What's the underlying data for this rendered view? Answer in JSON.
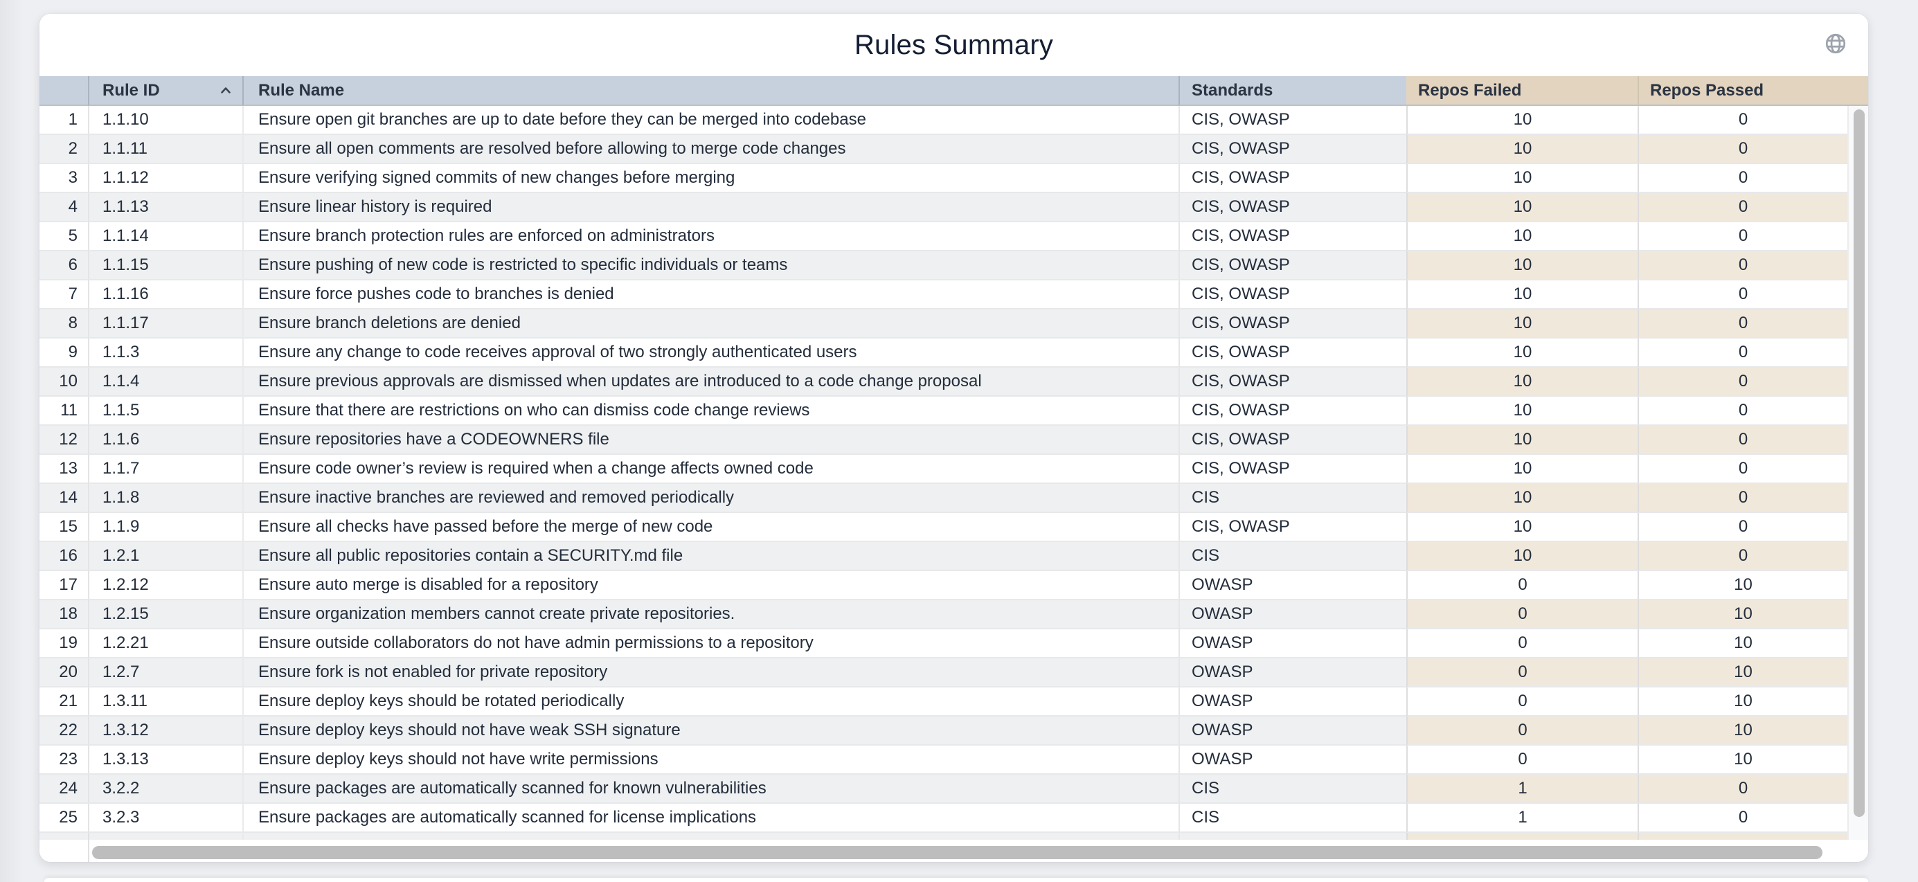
{
  "app": {
    "title": "Rules Summary"
  },
  "icons": {
    "globe": "globe-icon",
    "rule_id_sort": "chevron-up-icon"
  },
  "colors": {
    "header_blue": "#c7d1dd",
    "header_tan": "#e3d4bf",
    "stripe_gray": "#eef0f1",
    "stripe_tan": "#f0e8db",
    "title_text": "#141e33",
    "body_text": "#242d3b",
    "scrollbar_thumb": "#bdbdbd"
  },
  "table": {
    "sorted_by": "Rule ID",
    "sort_direction": "ascending",
    "columns": [
      "Rule ID",
      "Rule Name",
      "Standards",
      "Repos Failed",
      "Repos Passed"
    ],
    "rows": [
      {
        "n": 1,
        "id": "1.1.10",
        "name": "Ensure open git branches are up to date before they can be merged into codebase",
        "standards": "CIS, OWASP",
        "failed": 10,
        "passed": 0
      },
      {
        "n": 2,
        "id": "1.1.11",
        "name": "Ensure all open comments are resolved before allowing to merge code changes",
        "standards": "CIS, OWASP",
        "failed": 10,
        "passed": 0
      },
      {
        "n": 3,
        "id": "1.1.12",
        "name": "Ensure verifying signed commits of new changes before merging",
        "standards": "CIS, OWASP",
        "failed": 10,
        "passed": 0
      },
      {
        "n": 4,
        "id": "1.1.13",
        "name": "Ensure linear history is required",
        "standards": "CIS, OWASP",
        "failed": 10,
        "passed": 0
      },
      {
        "n": 5,
        "id": "1.1.14",
        "name": "Ensure branch protection rules are enforced on administrators",
        "standards": "CIS, OWASP",
        "failed": 10,
        "passed": 0
      },
      {
        "n": 6,
        "id": "1.1.15",
        "name": "Ensure pushing of new code is restricted to specific individuals or teams",
        "standards": "CIS, OWASP",
        "failed": 10,
        "passed": 0
      },
      {
        "n": 7,
        "id": "1.1.16",
        "name": "Ensure force pushes code to branches is denied",
        "standards": "CIS, OWASP",
        "failed": 10,
        "passed": 0
      },
      {
        "n": 8,
        "id": "1.1.17",
        "name": "Ensure branch deletions are denied",
        "standards": "CIS, OWASP",
        "failed": 10,
        "passed": 0
      },
      {
        "n": 9,
        "id": "1.1.3",
        "name": "Ensure any change to code receives approval of two strongly authenticated users",
        "standards": "CIS, OWASP",
        "failed": 10,
        "passed": 0
      },
      {
        "n": 10,
        "id": "1.1.4",
        "name": "Ensure previous approvals are dismissed when updates are introduced to a code change proposal",
        "standards": "CIS, OWASP",
        "failed": 10,
        "passed": 0
      },
      {
        "n": 11,
        "id": "1.1.5",
        "name": "Ensure that there are restrictions on who can dismiss code change reviews",
        "standards": "CIS, OWASP",
        "failed": 10,
        "passed": 0
      },
      {
        "n": 12,
        "id": "1.1.6",
        "name": "Ensure repositories have a CODEOWNERS file",
        "standards": "CIS, OWASP",
        "failed": 10,
        "passed": 0
      },
      {
        "n": 13,
        "id": "1.1.7",
        "name": "Ensure code owner’s review is required when a change affects owned code",
        "standards": "CIS, OWASP",
        "failed": 10,
        "passed": 0
      },
      {
        "n": 14,
        "id": "1.1.8",
        "name": "Ensure inactive branches are reviewed and removed periodically",
        "standards": "CIS",
        "failed": 10,
        "passed": 0
      },
      {
        "n": 15,
        "id": "1.1.9",
        "name": "Ensure all checks have passed before the merge of new code",
        "standards": "CIS, OWASP",
        "failed": 10,
        "passed": 0
      },
      {
        "n": 16,
        "id": "1.2.1",
        "name": "Ensure all public repositories contain a SECURITY.md file",
        "standards": "CIS",
        "failed": 10,
        "passed": 0
      },
      {
        "n": 17,
        "id": "1.2.12",
        "name": "Ensure auto merge is disabled for a repository",
        "standards": "OWASP",
        "failed": 0,
        "passed": 10
      },
      {
        "n": 18,
        "id": "1.2.15",
        "name": "Ensure organization members cannot create private repositories.",
        "standards": "OWASP",
        "failed": 0,
        "passed": 10
      },
      {
        "n": 19,
        "id": "1.2.21",
        "name": "Ensure outside collaborators do not have admin permissions to a repository",
        "standards": "OWASP",
        "failed": 0,
        "passed": 10
      },
      {
        "n": 20,
        "id": "1.2.7",
        "name": "Ensure fork is not enabled for private repository",
        "standards": "OWASP",
        "failed": 0,
        "passed": 10
      },
      {
        "n": 21,
        "id": "1.3.11",
        "name": "Ensure deploy keys should be rotated periodically",
        "standards": "OWASP",
        "failed": 0,
        "passed": 10
      },
      {
        "n": 22,
        "id": "1.3.12",
        "name": "Ensure deploy keys should not have weak SSH signature",
        "standards": "OWASP",
        "failed": 0,
        "passed": 10
      },
      {
        "n": 23,
        "id": "1.3.13",
        "name": "Ensure deploy keys should not have write permissions",
        "standards": "OWASP",
        "failed": 0,
        "passed": 10
      },
      {
        "n": 24,
        "id": "3.2.2",
        "name": "Ensure packages are automatically scanned for known vulnerabilities",
        "standards": "CIS",
        "failed": 1,
        "passed": 0
      },
      {
        "n": 25,
        "id": "3.2.3",
        "name": "Ensure packages are automatically scanned for license implications",
        "standards": "CIS",
        "failed": 1,
        "passed": 0
      }
    ]
  }
}
